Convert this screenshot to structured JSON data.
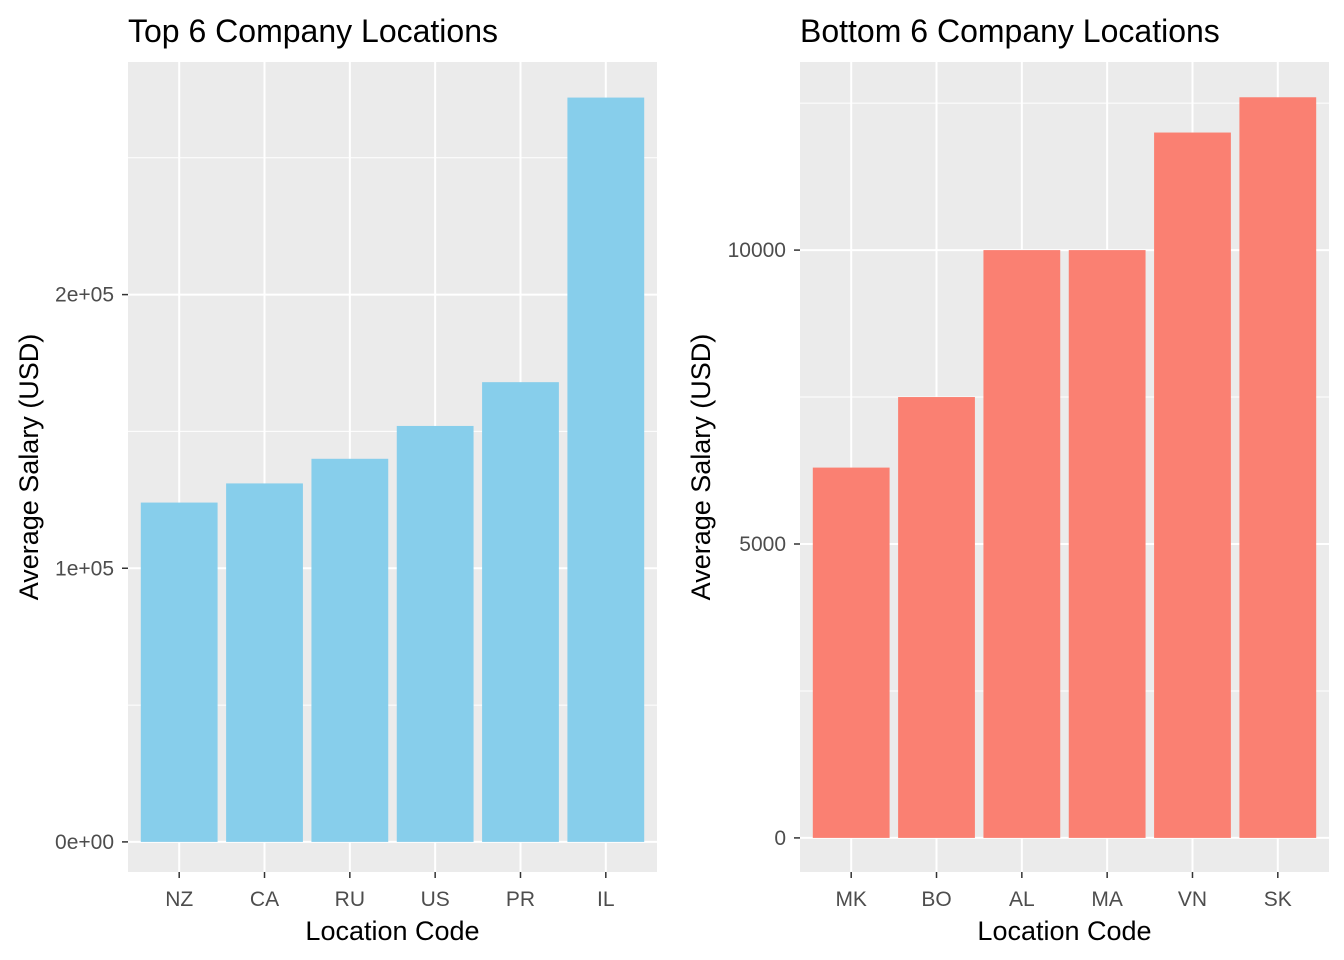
{
  "chart_data": [
    {
      "type": "bar",
      "title": "Top 6 Company Locations",
      "xlabel": "Location Code",
      "ylabel": "Average Salary (USD)",
      "categories": [
        "NZ",
        "CA",
        "RU",
        "US",
        "PR",
        "IL"
      ],
      "values": [
        124000,
        131000,
        140000,
        152000,
        168000,
        272000
      ],
      "ylim": [
        -11000,
        285000
      ],
      "yticks": [
        0,
        100000,
        200000
      ],
      "ytick_labels": [
        "0e+00",
        "1e+05",
        "2e+05"
      ],
      "color": "#87CEEB",
      "grid": true,
      "legend": "none"
    },
    {
      "type": "bar",
      "title": "Bottom 6 Company Locations",
      "xlabel": "Location Code",
      "ylabel": "Average Salary (USD)",
      "categories": [
        "MK",
        "BO",
        "AL",
        "MA",
        "VN",
        "SK"
      ],
      "values": [
        6300,
        7500,
        10000,
        10000,
        12000,
        12600
      ],
      "ylim": [
        -580,
        13200
      ],
      "yticks": [
        0,
        5000,
        10000
      ],
      "ytick_labels": [
        "0",
        "5000",
        "10000"
      ],
      "color": "#FA8072",
      "grid": true,
      "legend": "none"
    }
  ]
}
